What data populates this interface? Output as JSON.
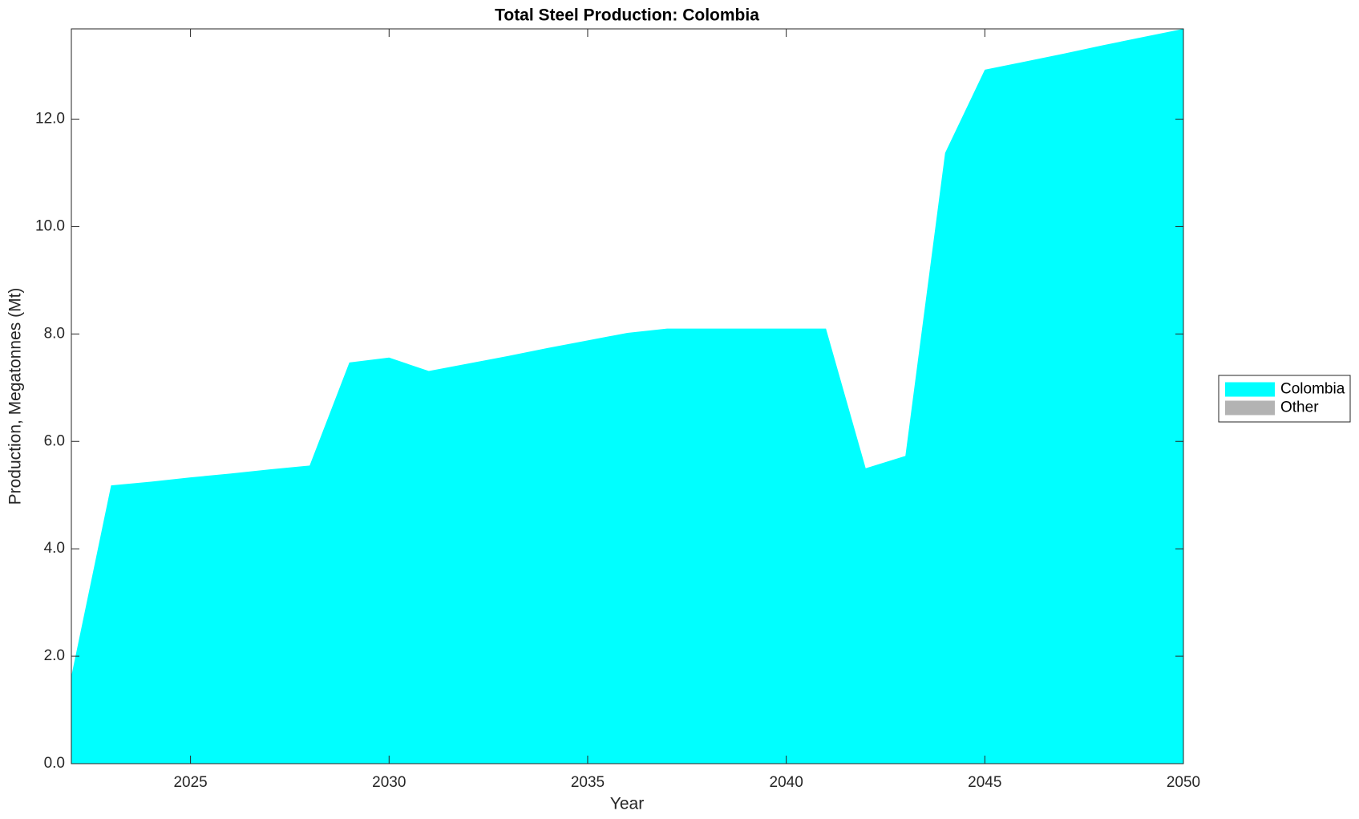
{
  "chart_data": {
    "type": "stacked-area",
    "title": "Total Steel Production: Colombia",
    "xlabel": "Year",
    "ylabel": "Production, Megatonnes (Mt)",
    "x": [
      2022,
      2023,
      2024,
      2025,
      2026,
      2027,
      2028,
      2029,
      2030,
      2031,
      2032,
      2033,
      2034,
      2035,
      2036,
      2037,
      2038,
      2039,
      2040,
      2041,
      2042,
      2043,
      2044,
      2045,
      2046,
      2047,
      2048,
      2049,
      2050
    ],
    "series": [
      {
        "name": "Colombia",
        "color": "#00ffff",
        "values": [
          1.63,
          5.18,
          5.25,
          5.33,
          5.4,
          5.48,
          5.55,
          7.47,
          7.56,
          7.31,
          7.45,
          7.59,
          7.74,
          7.88,
          8.02,
          8.1,
          8.1,
          8.1,
          8.1,
          8.1,
          5.5,
          5.73,
          11.37,
          12.92,
          13.07,
          13.22,
          13.38,
          13.53,
          13.68
        ]
      },
      {
        "name": "Other",
        "color": "#b3b3b3",
        "values": [
          0,
          0,
          0,
          0,
          0,
          0,
          0,
          0,
          0,
          0,
          0,
          0,
          0,
          0,
          0,
          0,
          0,
          0,
          0,
          0,
          0,
          0,
          0,
          0,
          0,
          0,
          0,
          0,
          0
        ]
      }
    ],
    "xlim": [
      2022,
      2050
    ],
    "ylim": [
      0,
      13.68
    ],
    "xticks": [
      2025,
      2030,
      2035,
      2040,
      2045,
      2050
    ],
    "yticks": [
      {
        "value": 0,
        "label": "0.0"
      },
      {
        "value": 2,
        "label": "2.0"
      },
      {
        "value": 4,
        "label": "4.0"
      },
      {
        "value": 6,
        "label": "6.0"
      },
      {
        "value": 8,
        "label": "8.0"
      },
      {
        "value": 10,
        "label": "10.0"
      },
      {
        "value": 12,
        "label": "12.0"
      }
    ],
    "legend": "right"
  }
}
